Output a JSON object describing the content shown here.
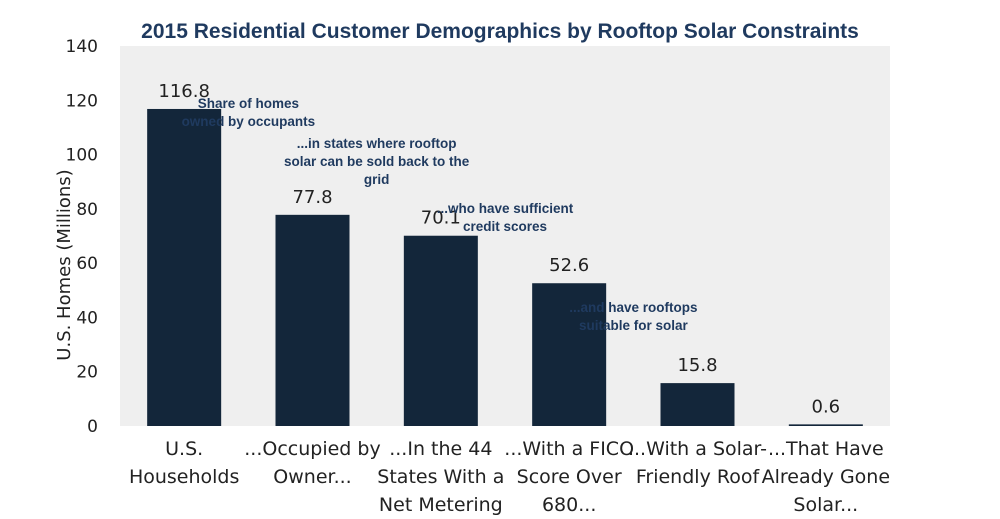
{
  "chart_data": {
    "type": "bar",
    "title": "2015 Residential Customer Demographics by Rooftop Solar Constraints",
    "xlabel": "",
    "ylabel": "U.S. Homes (Millions)",
    "ylim": [
      0,
      140
    ],
    "yticks": [
      0,
      20,
      40,
      60,
      80,
      100,
      120,
      140
    ],
    "categories": [
      [
        "U.S.",
        "Households"
      ],
      [
        "...Occupied by",
        "Owner..."
      ],
      [
        "...In the 44",
        "States With a",
        "Net Metering"
      ],
      [
        "...With a FICO",
        "Score Over",
        "680..."
      ],
      [
        "...With a Solar-",
        "Friendly Roof"
      ],
      [
        "...That Have",
        "Already Gone",
        "Solar..."
      ]
    ],
    "values": [
      116.8,
      77.8,
      70.1,
      52.6,
      15.8,
      0.6
    ],
    "value_labels": [
      "116.8",
      "77.8",
      "70.1",
      "52.6",
      "15.8",
      "0.6"
    ],
    "bar_color": "#13263a",
    "plot_background": "#efefef",
    "annotations": [
      {
        "lines": [
          "Share of homes",
          "owned by occupants"
        ],
        "between": [
          0,
          1
        ]
      },
      {
        "lines": [
          "...in states where rooftop",
          "solar can be sold back to the",
          "grid"
        ],
        "between": [
          1,
          2
        ]
      },
      {
        "lines": [
          "...who have sufficient",
          "credit scores"
        ],
        "between": [
          2,
          3
        ]
      },
      {
        "lines": [
          "...and have rooftops",
          "suitable for solar"
        ],
        "between": [
          3,
          4
        ]
      }
    ]
  }
}
